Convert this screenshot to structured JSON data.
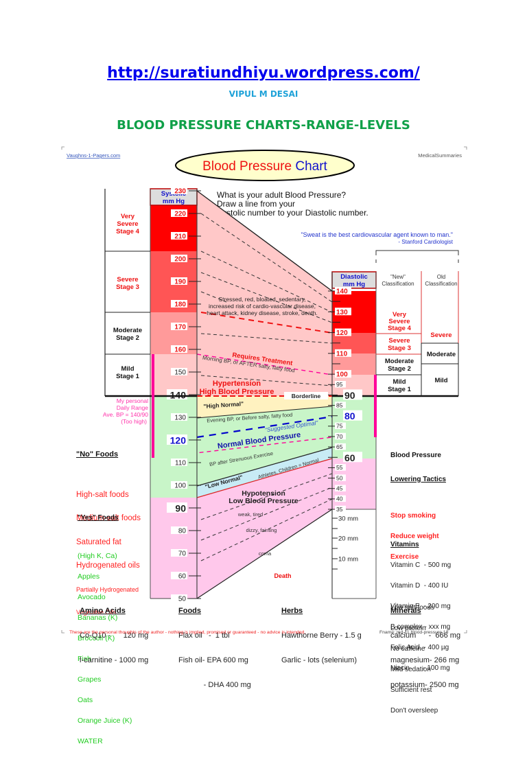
{
  "header": {
    "url": "http://suratiundhiyu.wordpress.com/",
    "author": "VIPUL M DESAI",
    "title": "BLOOD PRESSURE CHARTS-RANGE-LEVELS"
  },
  "chart_header": {
    "left_source": "Vaughns-1-Pagers.com",
    "right_source": "MedicalSummaries",
    "chart_title_part1": "Blood Pressure",
    "chart_title_part2": "Chart",
    "instructions": [
      "What is your adult Blood Pressure?",
      "Draw a line from your",
      "Systolic number to your Diastolic number."
    ],
    "quote": "\"Sweat is the best cardiovascular agent known to man.\"",
    "quote_author": "- Stanford Cardiologist"
  },
  "chart_data": {
    "type": "nomogram",
    "title": "Blood Pressure Chart",
    "systolic_axis": {
      "label": "Systolic mm Hg",
      "ticks": [
        230,
        220,
        210,
        200,
        190,
        180,
        170,
        160,
        150,
        140,
        130,
        120,
        110,
        100,
        90,
        80,
        70,
        60,
        50
      ],
      "range": [
        50,
        230
      ]
    },
    "diastolic_axis": {
      "label": "Diastolic mm Hg",
      "ticks": [
        140,
        130,
        120,
        110,
        100,
        95,
        90,
        85,
        80,
        75,
        70,
        65,
        60,
        55,
        50,
        45,
        40,
        35
      ],
      "mm_ticks": [
        "30 mm",
        "20 mm",
        "10 mm"
      ],
      "range": [
        0,
        140
      ]
    },
    "systolic_stages": [
      {
        "label": "Very Severe Stage 4",
        "from": 210,
        "to": 230,
        "color": "#ff0000"
      },
      {
        "label": "Severe Stage 3",
        "from": 180,
        "to": 210,
        "color": "#ff5050"
      },
      {
        "label": "Moderate Stage 2",
        "from": 160,
        "to": 180,
        "color": "#ff9999"
      },
      {
        "label": "Mild Stage 1",
        "from": 140,
        "to": 160,
        "color": "#ffc8c8"
      }
    ],
    "new_classification": [
      {
        "label": "Very Severe Stage 4",
        "from": 120,
        "to": 140
      },
      {
        "label": "Severe Stage 3",
        "from": 110,
        "to": 120
      },
      {
        "label": "Moderate Stage 2",
        "from": 100,
        "to": 110
      },
      {
        "label": "Mild Stage 1",
        "from": 90,
        "to": 100
      }
    ],
    "classification_headers": {
      "new": "\"New\" Classification",
      "old": "Old Classification"
    },
    "old_classification": [
      {
        "label": "Severe",
        "from": 115,
        "to": 140
      },
      {
        "label": "Moderate",
        "from": 105,
        "to": 115
      },
      {
        "label": "Mild",
        "from": 90,
        "to": 105
      }
    ],
    "zones": [
      {
        "label": "Hypertension High Blood Pressure",
        "systolic_min": 140,
        "diastolic_min": 90,
        "color": "#ffc8c8"
      },
      {
        "label": "\"High Normal\"",
        "systolic": [
          130,
          140
        ],
        "diastolic": [
          85,
          90
        ],
        "color": "#fff5c8"
      },
      {
        "label": "Normal Blood Pressure",
        "systolic": [
          100,
          130
        ],
        "diastolic": [
          60,
          85
        ],
        "color": "#c8f5c8"
      },
      {
        "label": "\"Low Normal\"",
        "systolic": [
          90,
          100
        ],
        "diastolic": [
          60,
          65
        ],
        "color": "#c8ebf5"
      },
      {
        "label": "Hypotension Low Blood Pressure",
        "systolic": [
          50,
          90
        ],
        "diastolic": [
          35,
          60
        ],
        "color": "#ffc8eb"
      }
    ],
    "annotations": {
      "severe_note": [
        "Stressed, red, bloated, sedentary,",
        "increased risk of cardio-vascular disease,",
        "heart attack, kidney disease, stroke, death."
      ],
      "requires_treatment": "Requires Treatment",
      "morning_bp": "Morning BP, or AFTER salty, fatty food",
      "hypertension": [
        "Hypertension",
        "High  Blood  Pressure"
      ],
      "borderline": "Borderline",
      "high_normal": "\"High Normal\"",
      "evening_bp": "Evening BP, or Before salty, fatty food",
      "suggested_optimal": "\"Suggested Optimal\"",
      "normal_bp": "Normal Blood Pressure",
      "after_exercise": "BP after Strenuous Exercise",
      "low_normal": "\"Low Normal\"",
      "athletes": "Athletes, Children = Normal",
      "hypotension": [
        "Hypotension",
        "Low  Blood  Pressure"
      ],
      "weak": "weak, tired",
      "dizzy": "dizzy, fainting",
      "coma": "coma",
      "death": "Death"
    },
    "suggested_optimal": {
      "systolic": 120,
      "diastolic": 80
    },
    "borderline": {
      "systolic": 140,
      "diastolic": 90
    },
    "personal_range": {
      "label": [
        "My personal",
        "Daily Range",
        "Ave. BP = 140/90",
        "(Too high)"
      ],
      "systolic": [
        110,
        160
      ],
      "diastolic": [
        70,
        100
      ]
    }
  },
  "foods": {
    "no_title": "\"No\" Foods",
    "no_items": [
      "High-salt foods",
      "Medium-salt foods",
      "Saturated fat",
      "Hydrogenated oils"
    ],
    "no_small": [
      "Partially Hydrogenated",
      "Vegetable Oils"
    ],
    "yes_title": "\"Yes\" Foods",
    "yes_items": [
      "(High K, Ca)",
      "Apples",
      "Avocado",
      "Bananas (K)",
      "Broccoli (K)",
      "Fish",
      "Grapes",
      "Oats",
      "Orange Juice (K)",
      "WATER"
    ]
  },
  "tactics": {
    "title1": "Blood Pressure",
    "title2": "Lowering Tactics",
    "red_items": [
      "Stop smoking",
      "Reduce weight",
      "Exercise"
    ],
    "items": [
      "Low salt foods",
      "Low protein",
      "No caffeine",
      "Mild sedation",
      "Sufficient rest",
      "Don't oversleep"
    ]
  },
  "vitamins": {
    "title": "Vitamins",
    "items": [
      "Vitamin C  - 500 mg",
      "Vitamin D  - 400 IU",
      "Vitamin E  - 200 mg",
      "B complex - xxx mg",
      "Folic Acid  - 400 µg",
      "Niacin       - 100 mg"
    ]
  },
  "supplements": {
    "amino": {
      "title": "Amino Acids",
      "items": [
        "Co-Q10 -      120 mg",
        "l-carnitine - 1000 mg"
      ]
    },
    "foods": {
      "title": "Foods",
      "items": [
        "Flax oil   -  1 tbl",
        "Fish oil- EPA 600 mg",
        "            - DHA 400 mg"
      ]
    },
    "herbs": {
      "title": "Herbs",
      "items": [
        "Hawthorne Berry - 1.5 g",
        "Garlic - lots (selenium)"
      ]
    },
    "minerals": {
      "title": "Minerals",
      "items": [
        "calcium      -  666 mg",
        "magnesium- 266 mg",
        "potassium- 2500 mg"
      ]
    }
  },
  "footer": {
    "disclaimer": "These are the personal thoughts of the author - nothing is implied, promised or guaranteed - no advice is intended.",
    "fname": "Fname: md-11.blood-pressure.18"
  },
  "colors": {
    "url": "#0000ee",
    "author": "#1fa2d8",
    "title": "#0fa048",
    "red": "#ff0000",
    "pink_line": "#ff0099",
    "blue": "#0000cc",
    "green_text": "#22cc22"
  }
}
